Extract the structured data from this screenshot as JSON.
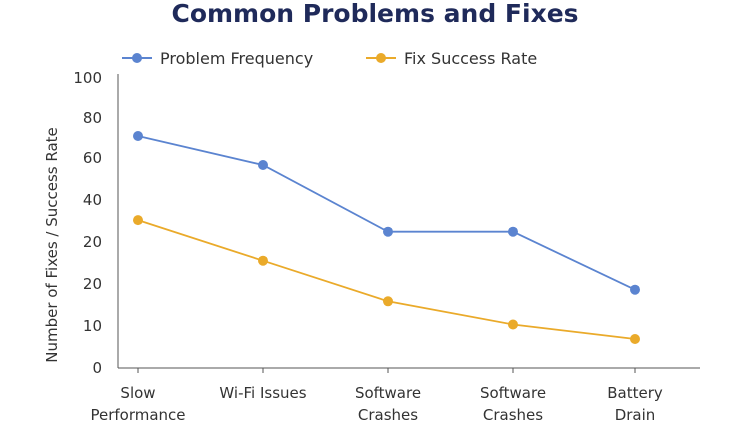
{
  "chart_data": {
    "type": "line",
    "title": "Common Problems and Fixes",
    "ylabel": "Number of Fixes / Success Rate",
    "xlabel": "",
    "y_tick_labels": [
      "0",
      "10",
      "20",
      "20",
      "40",
      "60",
      "80",
      "100"
    ],
    "categories": [
      [
        "Slow",
        "Performance"
      ],
      [
        "Wi-Fi Issues"
      ],
      [
        "Software",
        "Crashes"
      ],
      [
        "Software",
        "Crashes"
      ],
      [
        "Battery",
        "Drain"
      ]
    ],
    "series": [
      {
        "name": "Problem Frequency",
        "color": "#5b84d0",
        "values": [
          80,
          70,
          47,
          47,
          27
        ]
      },
      {
        "name": "Fix Success Rate",
        "color": "#eaaa2a",
        "values": [
          51,
          37,
          23,
          15,
          10
        ]
      }
    ],
    "ylim": [
      0,
      100
    ],
    "grid": false,
    "legend_position": "top-left"
  }
}
